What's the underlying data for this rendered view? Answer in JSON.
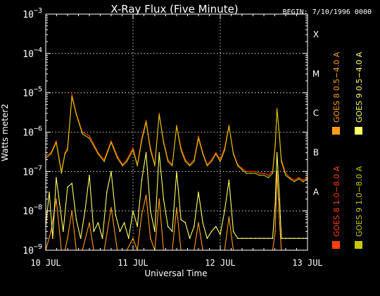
{
  "chart_data": {
    "type": "line",
    "title": "X-Ray Flux (Five Minute)",
    "begin_label": "BEGIN: 7/10/1996 0000",
    "xlabel": "Universal Time",
    "ylabel": "Watts meter2",
    "y_scale": "log",
    "ylim": [
      1e-09,
      0.001
    ],
    "xlim": [
      0,
      3
    ],
    "x_ticks": [
      {
        "v": 0,
        "label": "10 JUL"
      },
      {
        "v": 1,
        "label": "11 JUL"
      },
      {
        "v": 2,
        "label": "12 JUL"
      },
      {
        "v": 3,
        "label": "13 JUL"
      }
    ],
    "y_ticks": [
      {
        "e": -9,
        "base": "10",
        "exp": "−9"
      },
      {
        "e": -8,
        "base": "10",
        "exp": "−8"
      },
      {
        "e": -7,
        "base": "10",
        "exp": "−7"
      },
      {
        "e": -6,
        "base": "10",
        "exp": "−6"
      },
      {
        "e": -5,
        "base": "10",
        "exp": "−5"
      },
      {
        "e": -4,
        "base": "10",
        "exp": "−4"
      },
      {
        "e": -3,
        "base": "10",
        "exp": "−3"
      }
    ],
    "flare_classes": [
      {
        "label": "A",
        "e": -7.5
      },
      {
        "label": "B",
        "e": -6.5
      },
      {
        "label": "C",
        "e": -5.5
      },
      {
        "label": "M",
        "e": -4.5
      },
      {
        "label": "X",
        "e": -3.5
      }
    ],
    "grid": true,
    "legend": [
      {
        "name": "GOES 8 1.0−8.0 A",
        "color": "#ff4000"
      },
      {
        "name": "GOES 8 0.5−4.0 A",
        "color": "#ff9d1a"
      },
      {
        "name": "GOES 9 1.0−8.0 A",
        "color": "#c8c800"
      },
      {
        "name": "GOES 9 0.5−4.0 A",
        "color": "#ffff66"
      }
    ],
    "series": [
      {
        "name": "GOES 8 1.0−8.0 A",
        "color": "#ff4000",
        "x": [
          0.0,
          0.06,
          0.12,
          0.18,
          0.22,
          0.25,
          0.3,
          0.35,
          0.42,
          0.5,
          0.55,
          0.6,
          0.67,
          0.75,
          0.82,
          0.88,
          0.93,
          1.0,
          1.05,
          1.1,
          1.15,
          1.2,
          1.25,
          1.3,
          1.35,
          1.4,
          1.45,
          1.5,
          1.55,
          1.6,
          1.65,
          1.7,
          1.75,
          1.8,
          1.85,
          1.9,
          1.95,
          2.0,
          2.05,
          2.1,
          2.15,
          2.2,
          2.25,
          2.3,
          2.35,
          2.4,
          2.45,
          2.5,
          2.55,
          2.6,
          2.63,
          2.65,
          2.68,
          2.7,
          2.75,
          2.8,
          2.85,
          2.9,
          2.95,
          3.0
        ],
        "y": [
          2.5e-07,
          3e-07,
          6e-07,
          1e-07,
          3e-07,
          4e-07,
          9e-06,
          3e-06,
          1e-06,
          8e-07,
          5e-07,
          3e-07,
          2e-07,
          6e-07,
          2.5e-07,
          1.5e-07,
          2e-07,
          4e-07,
          1.5e-07,
          7e-07,
          2e-06,
          4e-07,
          1.5e-07,
          3e-06,
          6e-07,
          2e-07,
          1.5e-07,
          1.5e-06,
          4e-07,
          2e-07,
          1.5e-07,
          2e-07,
          8e-07,
          3e-07,
          1.5e-07,
          2e-07,
          3e-07,
          2e-07,
          4e-07,
          1.5e-06,
          3e-07,
          1.5e-07,
          1.2e-07,
          1e-07,
          1e-07,
          1e-07,
          9e-08,
          9e-08,
          8e-08,
          1e-07,
          5e-07,
          4e-06,
          8e-07,
          2e-07,
          9e-08,
          7e-08,
          6e-08,
          7e-08,
          6e-08,
          7e-08
        ]
      },
      {
        "name": "GOES 8 0.5−4.0 A",
        "color": "#ff9d1a",
        "x": [
          0.0,
          0.06,
          0.12,
          0.18,
          0.22,
          0.25,
          0.3,
          0.35,
          0.42,
          0.5,
          0.55,
          0.6,
          0.67,
          0.75,
          0.82,
          0.88,
          0.93,
          1.0,
          1.05,
          1.1,
          1.15,
          1.2,
          1.25,
          1.3,
          1.35,
          1.4,
          1.45,
          1.5,
          1.55,
          1.6,
          1.65,
          1.7,
          1.75,
          1.8,
          1.85,
          1.9,
          1.95,
          2.0,
          2.05,
          2.1,
          2.15,
          2.2,
          2.25,
          2.3,
          2.35,
          2.4,
          2.45,
          2.5,
          2.55,
          2.6,
          2.63,
          2.65,
          2.68,
          2.7,
          2.75,
          2.8,
          2.85,
          2.9,
          2.95,
          3.0
        ],
        "y": [
          1e-09,
          3e-09,
          2e-08,
          1e-09,
          1e-09,
          2e-09,
          1e-08,
          1e-09,
          1e-09,
          5e-09,
          1e-09,
          1e-09,
          1e-09,
          1.2e-08,
          1e-09,
          1e-09,
          1e-09,
          2e-09,
          1e-09,
          8e-09,
          2.5e-08,
          2e-09,
          1e-09,
          2e-08,
          1e-09,
          1e-09,
          1e-09,
          1.2e-08,
          1e-09,
          1e-09,
          1e-09,
          1e-09,
          5e-09,
          1e-09,
          1e-09,
          1e-09,
          1e-09,
          1e-09,
          1e-09,
          7e-09,
          1e-09,
          1e-09,
          1e-09,
          1e-09,
          1e-09,
          1e-09,
          1e-09,
          1e-09,
          1e-09,
          1e-09,
          3e-09,
          1e-07,
          5e-09,
          1e-09,
          1e-09,
          1e-09,
          1e-09,
          1e-09,
          1e-09,
          1e-09
        ]
      },
      {
        "name": "GOES 9 1.0−8.0 A",
        "color": "#c8c800",
        "x": [
          0.0,
          0.06,
          0.12,
          0.18,
          0.22,
          0.25,
          0.3,
          0.35,
          0.42,
          0.5,
          0.55,
          0.6,
          0.67,
          0.75,
          0.82,
          0.88,
          0.93,
          1.0,
          1.05,
          1.1,
          1.15,
          1.2,
          1.25,
          1.3,
          1.35,
          1.4,
          1.45,
          1.5,
          1.55,
          1.6,
          1.65,
          1.7,
          1.75,
          1.8,
          1.85,
          1.9,
          1.95,
          2.0,
          2.05,
          2.1,
          2.15,
          2.2,
          2.25,
          2.3,
          2.35,
          2.4,
          2.45,
          2.5,
          2.55,
          2.6,
          2.63,
          2.65,
          2.68,
          2.7,
          2.75,
          2.8,
          2.85,
          2.9,
          2.95,
          3.0
        ],
        "y": [
          2.2e-07,
          2.8e-07,
          5.5e-07,
          9e-08,
          2.8e-07,
          3.5e-07,
          8e-06,
          2.8e-06,
          9e-07,
          7e-07,
          4.5e-07,
          2.8e-07,
          1.8e-07,
          5.5e-07,
          2.2e-07,
          1.4e-07,
          1.8e-07,
          3.5e-07,
          1.4e-07,
          6e-07,
          1.8e-06,
          3.5e-07,
          1.4e-07,
          2.8e-06,
          5.5e-07,
          1.8e-07,
          1.4e-07,
          1.4e-06,
          3.5e-07,
          1.8e-07,
          1.4e-07,
          1.8e-07,
          7e-07,
          2.8e-07,
          1.4e-07,
          1.8e-07,
          2.8e-07,
          1.8e-07,
          3.5e-07,
          1.4e-06,
          2.8e-07,
          1.4e-07,
          1.1e-07,
          9e-08,
          9e-08,
          9e-08,
          8e-08,
          8e-08,
          7e-08,
          9e-08,
          4.5e-07,
          3.8e-06,
          7e-07,
          1.8e-07,
          8e-08,
          6.5e-08,
          5.5e-08,
          6.5e-08,
          5.5e-08,
          6.5e-08
        ]
      },
      {
        "name": "GOES 9 0.5−4.0 A",
        "color": "#ffff66",
        "x": [
          0.0,
          0.04,
          0.08,
          0.12,
          0.16,
          0.2,
          0.25,
          0.3,
          0.35,
          0.4,
          0.45,
          0.5,
          0.55,
          0.6,
          0.65,
          0.7,
          0.75,
          0.8,
          0.85,
          0.9,
          0.95,
          1.0,
          1.05,
          1.1,
          1.15,
          1.2,
          1.25,
          1.3,
          1.35,
          1.4,
          1.45,
          1.5,
          1.55,
          1.6,
          1.65,
          1.7,
          1.75,
          1.8,
          1.85,
          1.9,
          1.95,
          2.0,
          2.05,
          2.1,
          2.15,
          2.2,
          2.25,
          2.3,
          2.35,
          2.4,
          2.45,
          2.5,
          2.55,
          2.6,
          2.63,
          2.65,
          2.68,
          2.7,
          2.75,
          2.8,
          2.85,
          2.9,
          2.95,
          3.0
        ],
        "y": [
          4e-09,
          3e-08,
          2e-09,
          7e-08,
          1.5e-08,
          3e-09,
          4e-08,
          5e-08,
          6e-09,
          2e-09,
          1e-08,
          8e-08,
          3e-09,
          5e-09,
          2e-09,
          3e-08,
          1e-07,
          8e-09,
          3e-09,
          5e-09,
          2e-09,
          1e-08,
          4e-09,
          6e-08,
          3e-07,
          1e-08,
          3e-09,
          3e-07,
          2e-08,
          4e-09,
          3e-09,
          1e-07,
          6e-09,
          5e-09,
          2e-09,
          4e-09,
          3e-08,
          5e-09,
          2e-09,
          3e-09,
          4e-09,
          2.5e-09,
          1e-08,
          6e-08,
          3e-09,
          2e-09,
          2e-09,
          2e-09,
          2e-09,
          2e-09,
          2e-09,
          2e-09,
          2e-09,
          2e-09,
          1.5e-08,
          3e-07,
          2e-08,
          2e-09,
          2e-09,
          2e-09,
          2e-09,
          2e-09,
          2e-09,
          2e-09
        ]
      }
    ]
  }
}
